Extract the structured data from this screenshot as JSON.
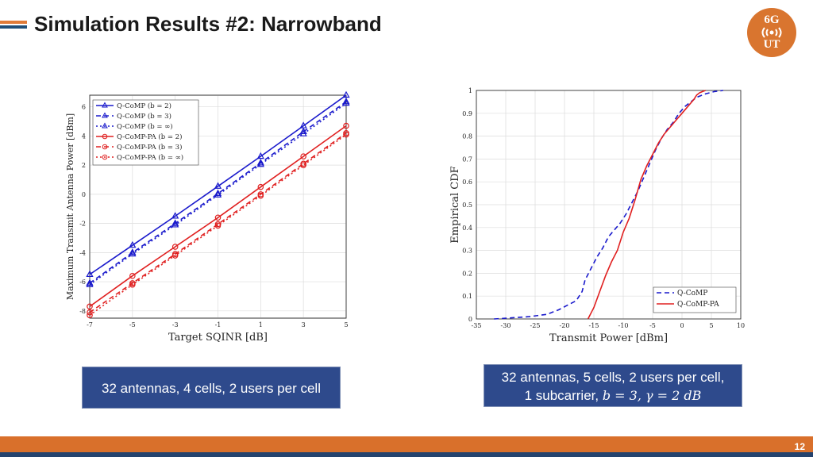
{
  "slide": {
    "title": "Simulation Results #2: Narrowband",
    "page_number": "12",
    "colors": {
      "orange": "#d9702b",
      "navy": "#24436e",
      "caption_bg": "#2e4a8c"
    }
  },
  "logo": {
    "top": "6G",
    "bottom": "UT"
  },
  "captions": {
    "left": "32 antennas, 4 cells, 2 users per cell",
    "right_line1": "32 antennas, 5 cells, 2 users per cell,",
    "right_line2_prefix": "1 subcarrier, ",
    "right_b": "b",
    "right_eq1": " = 3, ",
    "right_gamma": "γ",
    "right_eq2": " = 2 dB"
  },
  "chart_data": [
    {
      "type": "line",
      "xlabel": "Target SQINR [dB]",
      "ylabel": "Maximum Transmit Antenna Power [dBm]",
      "xlim": [
        -7,
        5
      ],
      "ylim": [
        -8.5,
        6.8
      ],
      "xticks": [
        -7,
        -5,
        -3,
        -1,
        1,
        3,
        5
      ],
      "yticks": [
        -8,
        -6,
        -4,
        -2,
        0,
        2,
        4,
        6
      ],
      "grid": true,
      "legend_position": "top-left",
      "x": [
        -7,
        -5,
        -3,
        -1,
        1,
        3,
        5
      ],
      "series": [
        {
          "name": "Q-CoMP (b = 2)",
          "color": "#1a1acc",
          "dash": "solid",
          "marker": "triangle",
          "values": [
            -5.5,
            -3.5,
            -1.5,
            0.55,
            2.6,
            4.7,
            6.8
          ]
        },
        {
          "name": "Q-CoMP (b = 3)",
          "color": "#1a1acc",
          "dash": "dashed",
          "marker": "triangle",
          "values": [
            -6.1,
            -4.0,
            -2.0,
            0.05,
            2.15,
            4.3,
            6.35
          ]
        },
        {
          "name": "Q-CoMP (b = ∞)",
          "color": "#1a1acc",
          "dash": "dotted",
          "marker": "triangle",
          "values": [
            -6.2,
            -4.1,
            -2.1,
            -0.05,
            2.05,
            4.15,
            6.25
          ]
        },
        {
          "name": "Q-CoMP-PA (b = 2)",
          "color": "#e02020",
          "dash": "solid",
          "marker": "circle",
          "values": [
            -7.7,
            -5.6,
            -3.6,
            -1.6,
            0.5,
            2.6,
            4.7
          ]
        },
        {
          "name": "Q-CoMP-PA (b = 3)",
          "color": "#e02020",
          "dash": "dashed",
          "marker": "circle",
          "values": [
            -8.1,
            -6.1,
            -4.1,
            -2.05,
            0.0,
            2.1,
            4.2
          ]
        },
        {
          "name": "Q-CoMP-PA (b = ∞)",
          "color": "#e02020",
          "dash": "dotted",
          "marker": "circle",
          "values": [
            -8.3,
            -6.2,
            -4.2,
            -2.15,
            -0.1,
            2.0,
            4.1
          ]
        }
      ]
    },
    {
      "type": "line",
      "xlabel": "Transmit Power [dBm]",
      "ylabel": "Empirical CDF",
      "xlim": [
        -35,
        10
      ],
      "ylim": [
        0,
        1
      ],
      "xticks": [
        -35,
        -30,
        -25,
        -20,
        -15,
        -10,
        -5,
        0,
        5,
        10
      ],
      "yticks": [
        0,
        0.1,
        0.2,
        0.3,
        0.4,
        0.5,
        0.6,
        0.7,
        0.8,
        0.9,
        1
      ],
      "grid": true,
      "legend_position": "bottom-right",
      "series": [
        {
          "name": "Q-CoMP",
          "color": "#1a1acc",
          "dash": "dashed",
          "x": [
            -32,
            -29,
            -26,
            -23,
            -21,
            -19.5,
            -18,
            -17,
            -16.5,
            -15.5,
            -14.5,
            -13.5,
            -12.5,
            -11.5,
            -10.5,
            -9.5,
            -8.5,
            -7.5,
            -6.5,
            -5.5,
            -4.5,
            -3.5,
            -2.5,
            -1.5,
            -0.5,
            0.5,
            1.5,
            2.5,
            4,
            5.5,
            7
          ],
          "y": [
            0,
            0.005,
            0.01,
            0.02,
            0.04,
            0.06,
            0.08,
            0.12,
            0.17,
            0.22,
            0.27,
            0.31,
            0.36,
            0.39,
            0.42,
            0.46,
            0.51,
            0.56,
            0.62,
            0.68,
            0.74,
            0.79,
            0.83,
            0.86,
            0.9,
            0.93,
            0.95,
            0.97,
            0.985,
            0.995,
            1
          ]
        },
        {
          "name": "Q-CoMP-PA",
          "color": "#e02020",
          "dash": "solid",
          "x": [
            -16,
            -15,
            -14,
            -13,
            -12,
            -11,
            -10,
            -9,
            -8,
            -7,
            -6,
            -5,
            -4,
            -3,
            -2,
            -1,
            0,
            1,
            2,
            2.5,
            3,
            3.5,
            4
          ],
          "y": [
            0,
            0.05,
            0.12,
            0.19,
            0.25,
            0.3,
            0.38,
            0.44,
            0.52,
            0.61,
            0.67,
            0.72,
            0.77,
            0.81,
            0.84,
            0.87,
            0.9,
            0.93,
            0.96,
            0.98,
            0.99,
            0.995,
            1
          ]
        }
      ]
    }
  ]
}
